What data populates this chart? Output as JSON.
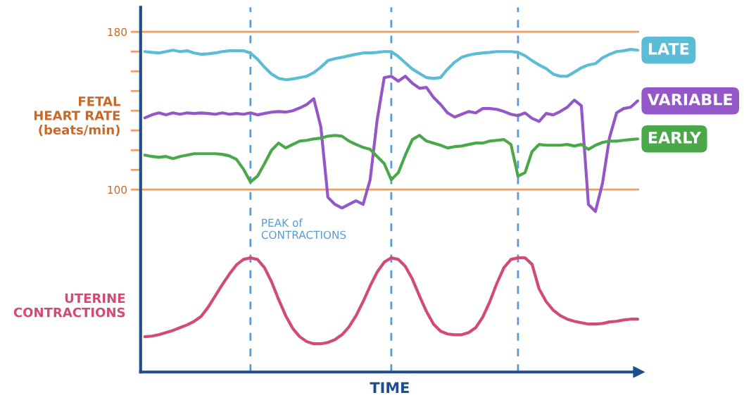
{
  "chart_data": {
    "type": "line",
    "ylabel": "FETAL\nHEART RATE\n(beats/min)",
    "xlabel": "TIME",
    "categories": [
      null,
      null,
      null,
      null,
      null,
      null,
      null,
      null,
      null,
      null,
      null,
      null,
      null,
      null,
      null,
      null,
      null,
      null,
      null,
      null,
      null,
      null,
      null,
      null,
      null,
      null,
      null,
      null,
      null,
      null,
      null,
      null,
      null,
      null,
      null,
      null,
      null,
      null,
      null,
      null,
      null,
      null,
      null,
      null,
      null,
      null,
      null,
      null,
      null,
      null,
      null,
      null,
      null,
      null,
      null,
      null,
      null,
      null,
      null,
      null,
      null,
      null,
      null,
      null,
      null,
      null,
      null,
      null,
      null,
      null,
      null
    ],
    "series": [
      {
        "name": "LATE",
        "color": "#5bbcd6",
        "values": [
          170,
          169.6,
          169.3,
          170,
          170.7,
          170,
          170.4,
          169.3,
          168.6,
          168.9,
          169.3,
          170,
          170.4,
          170.4,
          170.4,
          169.3,
          166.1,
          162.1,
          158.6,
          156.4,
          155.7,
          156.1,
          156.8,
          157.5,
          159.3,
          162.1,
          165.4,
          166.4,
          167.1,
          167.9,
          168.6,
          169.3,
          169.3,
          169.6,
          170,
          170,
          167.5,
          164.3,
          161.1,
          158.9,
          156.8,
          156.4,
          156.8,
          161.1,
          164.6,
          167.1,
          168.2,
          168.9,
          169.3,
          169.6,
          170,
          170,
          170,
          169.6,
          167.9,
          165.4,
          163.2,
          161.4,
          158.6,
          157.5,
          157.5,
          159.6,
          161.8,
          163.2,
          163.9,
          166.8,
          168.6,
          170,
          170.4,
          171.1,
          170.7
        ]
      },
      {
        "name": "VARIABLE",
        "color": "#9457c8",
        "values": [
          136.4,
          137.9,
          138.9,
          137.9,
          138.9,
          138.2,
          138.9,
          138.6,
          138.9,
          138.6,
          138.2,
          138.9,
          138.2,
          138.6,
          138.2,
          138.9,
          137.9,
          138.6,
          139.3,
          139.6,
          139.3,
          140,
          141.4,
          143.2,
          146.1,
          131.8,
          96.1,
          92.5,
          90.7,
          92.5,
          94.3,
          92.5,
          105,
          135.4,
          156.8,
          157.5,
          155,
          157.5,
          153.9,
          151.4,
          151.8,
          146.8,
          143.2,
          138.9,
          136.8,
          138.2,
          139.6,
          138.9,
          141.1,
          141.1,
          140.7,
          139.6,
          138.2,
          137.5,
          138.9,
          136.1,
          134.6,
          138.6,
          137.9,
          139.6,
          141.8,
          145.4,
          142.5,
          92.5,
          88.9,
          103.2,
          126.4,
          138.9,
          141.1,
          141.8,
          145
        ]
      },
      {
        "name": "EARLY",
        "color": "#4aa84a",
        "values": [
          117.5,
          116.8,
          116.4,
          116.8,
          115.7,
          116.8,
          117.5,
          118.2,
          118.2,
          118.2,
          118.2,
          117.9,
          117.1,
          115.4,
          110.4,
          103.9,
          106.8,
          113.2,
          120,
          123.6,
          121.1,
          122.9,
          124.6,
          125,
          125.7,
          126.1,
          127.1,
          127.5,
          127.1,
          124.6,
          122.9,
          121.4,
          120.4,
          116.8,
          113.2,
          105,
          108.6,
          117.5,
          125.4,
          127.5,
          124.6,
          123.6,
          122.5,
          121.1,
          121.8,
          122.1,
          122.9,
          123.6,
          123.6,
          124.6,
          125,
          125.4,
          122.9,
          106.8,
          108.6,
          119.3,
          122.9,
          122.5,
          122.5,
          122.5,
          122.9,
          122.1,
          122.9,
          120.4,
          122.5,
          123.9,
          124.6,
          124.6,
          125,
          125.4,
          125.7
        ]
      },
      {
        "name": "UTERINE\nCONTRACTIONS",
        "color": "#d24a78",
        "values": [
          25.4,
          25.7,
          26.4,
          27.5,
          28.6,
          30,
          31.4,
          33.2,
          35.7,
          40.4,
          46.1,
          51.8,
          57.1,
          61.8,
          64.6,
          65.4,
          64.6,
          60.4,
          53.2,
          44.3,
          36.1,
          29.6,
          25.4,
          22.9,
          21.8,
          21.8,
          22.5,
          23.9,
          26.4,
          30.4,
          36.1,
          43.2,
          51.1,
          58.2,
          63.2,
          65.4,
          64.6,
          61.1,
          54.6,
          46.1,
          38.2,
          31.8,
          28.2,
          26.8,
          26.4,
          26.4,
          27.5,
          30,
          35.4,
          43.2,
          52.5,
          60.4,
          64.6,
          65.4,
          65.4,
          62.1,
          49.6,
          43.2,
          38.9,
          36.1,
          34.3,
          33.2,
          32.5,
          31.8,
          31.8,
          32.1,
          32.9,
          33.2,
          33.9,
          34.3,
          34.3
        ]
      }
    ],
    "ylim": [
      7.5,
      192.5
    ],
    "yticks": [
      100,
      {
        "value": 110,
        "label": null
      },
      {
        "value": 120,
        "label": null
      },
      {
        "value": 130,
        "label": null
      },
      {
        "value": 140,
        "label": null
      },
      {
        "value": 150,
        "label": null
      },
      {
        "value": 160,
        "label": null
      },
      {
        "value": 170,
        "label": null
      },
      180
    ],
    "ref_lines": [
      {
        "axis": "y",
        "value": 180,
        "color": "#e8a06a",
        "line_style": "solid"
      },
      {
        "axis": "y",
        "value": 100,
        "color": "#e8a06a",
        "line_style": "solid"
      }
    ],
    "annotations": [
      "PEAK of\nCONTRACTIONS"
    ],
    "grid": "x",
    "legend": false,
    "marker": "none",
    "line_style": "solid"
  }
}
